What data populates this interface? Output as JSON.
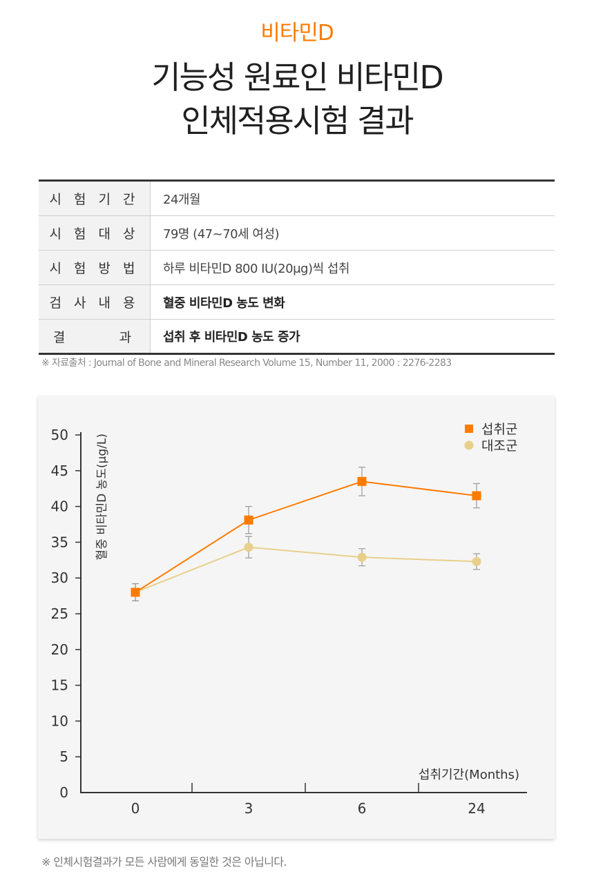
{
  "header": {
    "eyebrow": "비타민D",
    "title_line1": "기능성 원료인 비타민D",
    "title_line2": "인체적용시험 결과"
  },
  "info_table": [
    {
      "label": "시 험 기 간",
      "value": "24개월",
      "strong": false
    },
    {
      "label": "시 험 대 상",
      "value": "79명 (47~70세 여성)",
      "strong": false
    },
    {
      "label": "시 험 방 법",
      "value": "하루 비타민D 800 IU(20μg)씩 섭취",
      "strong": false
    },
    {
      "label": "검 사 내 용",
      "value": "혈중 비타민D 농도 변화",
      "strong": true
    },
    {
      "label": "결      과",
      "value": "섭취 후 비타민D 농도 증가",
      "strong": true
    }
  ],
  "source_note": "※ 자료출처 : Journal of Bone and Mineral Research Volume 15, Number 11, 2000 : 2276-2283",
  "chart_data": {
    "type": "line",
    "categories": [
      "0",
      "3",
      "6",
      "24"
    ],
    "ylabel": "혈중 비타민D 농도(μg/L)",
    "xlabel": "섭취기간(Months)",
    "ylim": [
      0,
      50
    ],
    "yticks": [
      0,
      5,
      10,
      15,
      20,
      25,
      30,
      35,
      40,
      45,
      50
    ],
    "legend_position": "top-right",
    "grid": false,
    "series": [
      {
        "name": "섭취군",
        "values": [
          28,
          38.1,
          43.5,
          41.5
        ],
        "error": [
          1.2,
          1.9,
          2.0,
          1.7
        ],
        "color": "#ff7b00",
        "marker": "square"
      },
      {
        "name": "대조군",
        "values": [
          28,
          34.3,
          32.9,
          32.3
        ],
        "error": [
          1.2,
          1.5,
          1.2,
          1.1
        ],
        "color": "#e8cf8a",
        "marker": "circle"
      }
    ]
  },
  "footnote": "※ 인체시험결과가 모든 사람에게 동일한 것은 아닙니다."
}
